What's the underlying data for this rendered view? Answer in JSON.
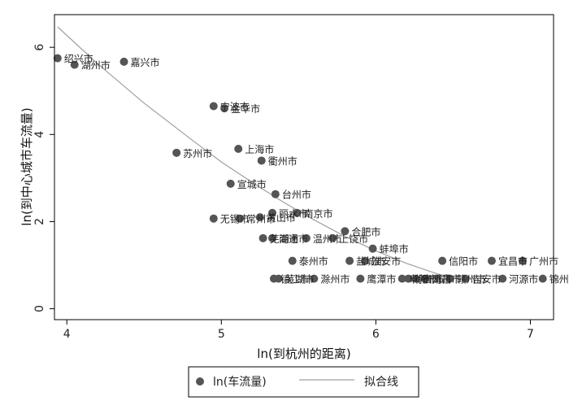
{
  "chart_data": {
    "type": "scatter",
    "xlabel": "ln(到杭州的距离)",
    "ylabel": "ln(到中心城市车流量)",
    "xlim": [
      3.92,
      7.15
    ],
    "ylim": [
      -0.25,
      6.75
    ],
    "xticks": [
      4,
      5,
      6,
      7
    ],
    "yticks": [
      0,
      2,
      4,
      6
    ],
    "grid": false,
    "legend_position": "bottom",
    "colors": {
      "points": "#555555",
      "fit": "#a0a0a0",
      "axis": "#000000"
    },
    "series": [
      {
        "name": "ln(车流量)",
        "kind": "scatter",
        "points": [
          {
            "x": 3.94,
            "y": 5.75,
            "label": "绍兴市"
          },
          {
            "x": 4.05,
            "y": 5.6,
            "label": "湖州市"
          },
          {
            "x": 4.37,
            "y": 5.67,
            "label": "嘉兴市"
          },
          {
            "x": 4.95,
            "y": 4.65,
            "label": "宁波市"
          },
          {
            "x": 5.02,
            "y": 4.6,
            "label": "金华市"
          },
          {
            "x": 4.71,
            "y": 3.58,
            "label": "苏州市"
          },
          {
            "x": 5.11,
            "y": 3.67,
            "label": "上海市"
          },
          {
            "x": 5.26,
            "y": 3.4,
            "label": "衢州市"
          },
          {
            "x": 5.06,
            "y": 2.87,
            "label": "宣城市"
          },
          {
            "x": 5.35,
            "y": 2.63,
            "label": "台州市"
          },
          {
            "x": 4.95,
            "y": 2.07,
            "label": "无锡市"
          },
          {
            "x": 5.12,
            "y": 2.07,
            "label": "常州市"
          },
          {
            "x": 5.25,
            "y": 2.1,
            "label": "黄山市"
          },
          {
            "x": 5.33,
            "y": 2.2,
            "label": "丽水市"
          },
          {
            "x": 5.49,
            "y": 2.2,
            "label": "南京市"
          },
          {
            "x": 5.8,
            "y": 1.78,
            "label": "合肥市"
          },
          {
            "x": 5.27,
            "y": 1.62,
            "label": "芜湖市"
          },
          {
            "x": 5.33,
            "y": 1.62,
            "label": "南通市"
          },
          {
            "x": 5.55,
            "y": 1.62,
            "label": "温州市"
          },
          {
            "x": 5.72,
            "y": 1.62,
            "label": "上饶市"
          },
          {
            "x": 5.98,
            "y": 1.38,
            "label": "蚌埠市"
          },
          {
            "x": 5.46,
            "y": 1.1,
            "label": "泰州市"
          },
          {
            "x": 5.83,
            "y": 1.1,
            "label": "盐城市"
          },
          {
            "x": 5.93,
            "y": 1.1,
            "label": "淮安市"
          },
          {
            "x": 6.43,
            "y": 1.1,
            "label": "信阳市"
          },
          {
            "x": 6.75,
            "y": 1.1,
            "label": "宜昌市"
          },
          {
            "x": 6.95,
            "y": 1.1,
            "label": "广州市"
          },
          {
            "x": 5.34,
            "y": 0.69,
            "label": "镇江市"
          },
          {
            "x": 5.37,
            "y": 0.69,
            "label": "芜湖市"
          },
          {
            "x": 5.6,
            "y": 0.69,
            "label": "滁州市"
          },
          {
            "x": 5.9,
            "y": 0.69,
            "label": "鹰潭市"
          },
          {
            "x": 6.17,
            "y": 0.69,
            "label": "阜阳市"
          },
          {
            "x": 6.21,
            "y": 0.69,
            "label": "徐州市"
          },
          {
            "x": 6.26,
            "y": 0.69,
            "label": "宿州市"
          },
          {
            "x": 6.32,
            "y": 0.69,
            "label": "南昌市"
          },
          {
            "x": 6.48,
            "y": 0.69,
            "label": "赣州市"
          },
          {
            "x": 6.58,
            "y": 0.69,
            "label": "吉安市"
          },
          {
            "x": 6.82,
            "y": 0.69,
            "label": "河源市"
          },
          {
            "x": 7.08,
            "y": 0.69,
            "label": "锦州市"
          }
        ]
      },
      {
        "name": "拟合线",
        "kind": "line",
        "points": [
          {
            "x": 3.94,
            "y": 6.47
          },
          {
            "x": 4.2,
            "y": 5.62
          },
          {
            "x": 4.5,
            "y": 4.72
          },
          {
            "x": 4.8,
            "y": 3.9
          },
          {
            "x": 5.0,
            "y": 3.37
          },
          {
            "x": 5.2,
            "y": 2.9
          },
          {
            "x": 5.4,
            "y": 2.45
          },
          {
            "x": 5.6,
            "y": 2.04
          },
          {
            "x": 5.8,
            "y": 1.66
          },
          {
            "x": 6.0,
            "y": 1.33
          },
          {
            "x": 6.2,
            "y": 1.04
          },
          {
            "x": 6.4,
            "y": 0.8
          },
          {
            "x": 6.55,
            "y": 0.67
          }
        ]
      }
    ]
  }
}
